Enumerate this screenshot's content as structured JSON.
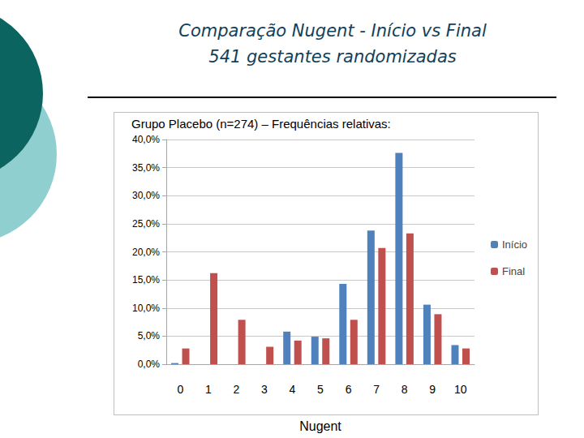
{
  "slide": {
    "title": "Comparação Nugent - Início vs Final",
    "subtitle": "541 gestantes randomizadas"
  },
  "chart_data": {
    "type": "bar",
    "title": "Grupo Placebo (n=274) – Frequências relativas:",
    "x_label": "Nugent",
    "categories": [
      "0",
      "1",
      "2",
      "3",
      "4",
      "5",
      "6",
      "7",
      "8",
      "9",
      "10"
    ],
    "series": [
      {
        "name": "Início",
        "color": "#4f81bd",
        "values": [
          0.2,
          0,
          0,
          0,
          5.8,
          4.9,
          14.3,
          23.8,
          37.6,
          10.6,
          3.4
        ]
      },
      {
        "name": "Final",
        "color": "#c0504d",
        "values": [
          2.8,
          16.2,
          7.9,
          3.1,
          4.2,
          4.6,
          7.9,
          20.7,
          23.3,
          8.9,
          2.8
        ]
      }
    ],
    "ylim": [
      0,
      40
    ],
    "yticks": [
      {
        "value": 0,
        "label": "0,0%"
      },
      {
        "value": 5,
        "label": "5,0%"
      },
      {
        "value": 10,
        "label": "10,0%"
      },
      {
        "value": 15,
        "label": "15,0%"
      },
      {
        "value": 20,
        "label": "20,0%"
      },
      {
        "value": 25,
        "label": "25,0%"
      },
      {
        "value": 30,
        "label": "30,0%"
      },
      {
        "value": 35,
        "label": "35,0%"
      },
      {
        "value": 40,
        "label": "40,0%"
      }
    ],
    "grid": true,
    "legend": "right"
  }
}
